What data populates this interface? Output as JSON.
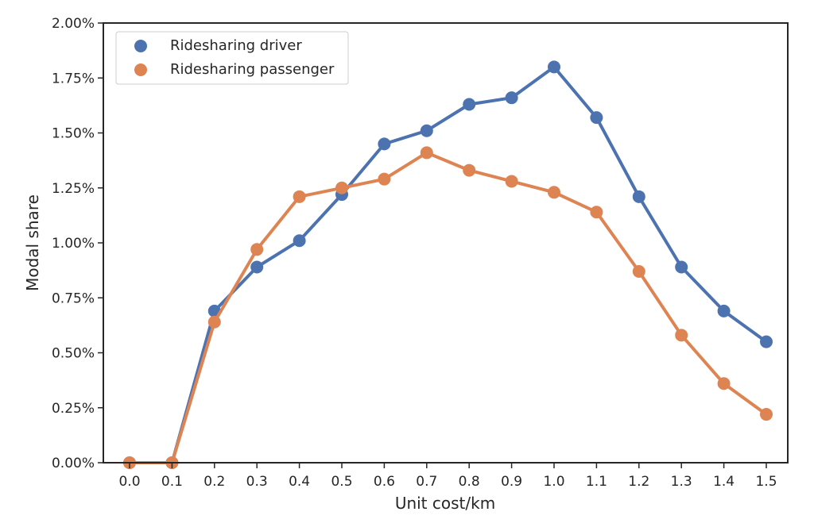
{
  "chart_data": {
    "type": "line",
    "title": "",
    "xlabel": "Unit cost/km",
    "ylabel": "Modal share",
    "x": [
      "0.0",
      "0.1",
      "0.2",
      "0.3",
      "0.4",
      "0.5",
      "0.6",
      "0.7",
      "0.8",
      "0.9",
      "1.0",
      "1.1",
      "1.2",
      "1.3",
      "1.4",
      "1.5"
    ],
    "yticks": [
      "0.00%",
      "0.25%",
      "0.50%",
      "0.75%",
      "1.00%",
      "1.25%",
      "1.50%",
      "1.75%",
      "2.00%"
    ],
    "ylim": [
      0,
      2.0
    ],
    "y_unit": "%",
    "grid": false,
    "legend_position": "top-left",
    "series": [
      {
        "name": "Ridesharing driver",
        "color": "#4c72b0",
        "values": [
          0.0,
          0.0,
          0.69,
          0.89,
          1.01,
          1.22,
          1.45,
          1.51,
          1.63,
          1.66,
          1.8,
          1.57,
          1.21,
          0.89,
          0.69,
          0.55
        ]
      },
      {
        "name": "Ridesharing passenger",
        "color": "#dd8452",
        "values": [
          0.0,
          0.0,
          0.64,
          0.97,
          1.21,
          1.25,
          1.29,
          1.41,
          1.33,
          1.28,
          1.23,
          1.14,
          0.87,
          0.58,
          0.36,
          0.22
        ]
      }
    ]
  }
}
